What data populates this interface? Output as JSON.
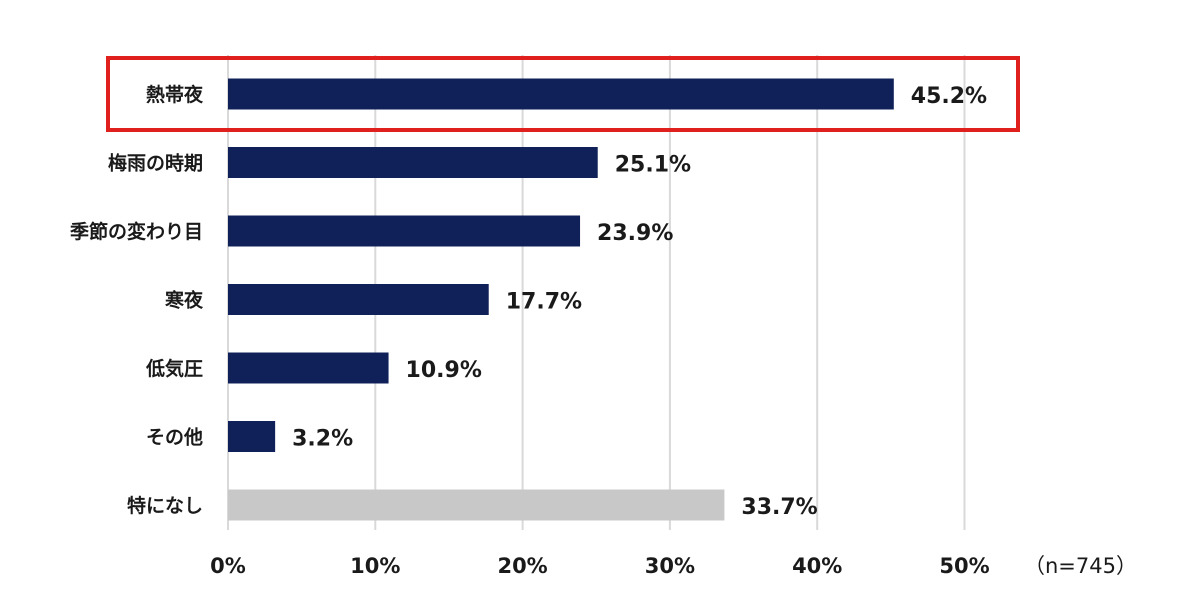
{
  "chart_data": {
    "type": "bar",
    "orientation": "horizontal",
    "categories": [
      "熱帯夜",
      "梅雨の時期",
      "季節の変わり目",
      "寒夜",
      "低気圧",
      "その他",
      "特になし"
    ],
    "values": [
      45.2,
      25.1,
      23.9,
      17.7,
      10.9,
      3.2,
      33.7
    ],
    "value_labels": [
      "45.2%",
      "25.1%",
      "23.9%",
      "17.7%",
      "10.9%",
      "3.2%",
      "33.7%"
    ],
    "xticks": [
      "0%",
      "10%",
      "20%",
      "30%",
      "40%",
      "50%"
    ],
    "xlim": [
      0,
      50
    ],
    "grid": true,
    "sample_note": "（n=745）",
    "highlighted_category": "熱帯夜",
    "colors": {
      "bar": "#0f2158",
      "bar_none": "#c8c8c8",
      "highlight_box": "#e0201c",
      "grid": "#d9d9d9"
    }
  }
}
